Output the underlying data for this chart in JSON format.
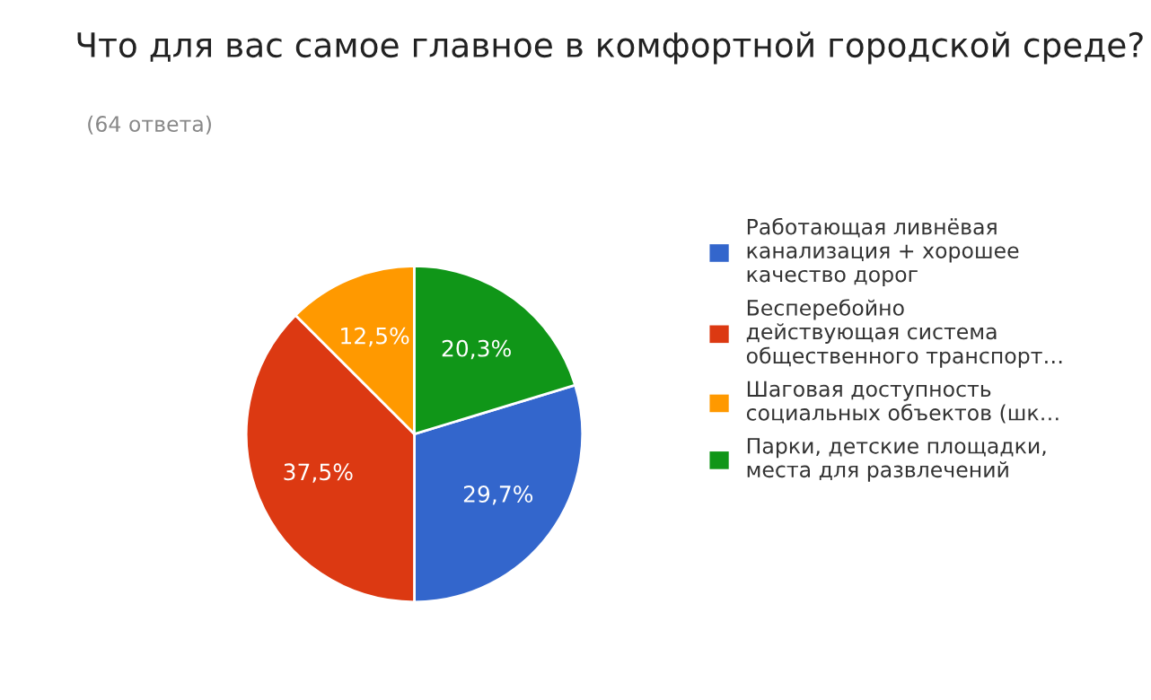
{
  "chart_data": {
    "type": "pie",
    "title": "Что для вас самое главное в комфортной городской среде?",
    "subtitle": "(64 ответа)",
    "categories": [
      "Работающая ливнёвая\nканализация + хорошее\nкачество дорог",
      "Бесперебойно\nдействующая система\nобщественного транспорт…",
      "Шаговая доступность\nсоциальных объектов (шк…",
      "Парки, детские площадки,\nместа для развлечений"
    ],
    "values": [
      29.7,
      37.5,
      12.5,
      20.3
    ],
    "value_labels": [
      "29,7%",
      "37,5%",
      "12,5%",
      "20,3%"
    ],
    "colors": [
      "#3366cc",
      "#dc3912",
      "#ff9900",
      "#109618"
    ],
    "legend": "right"
  }
}
